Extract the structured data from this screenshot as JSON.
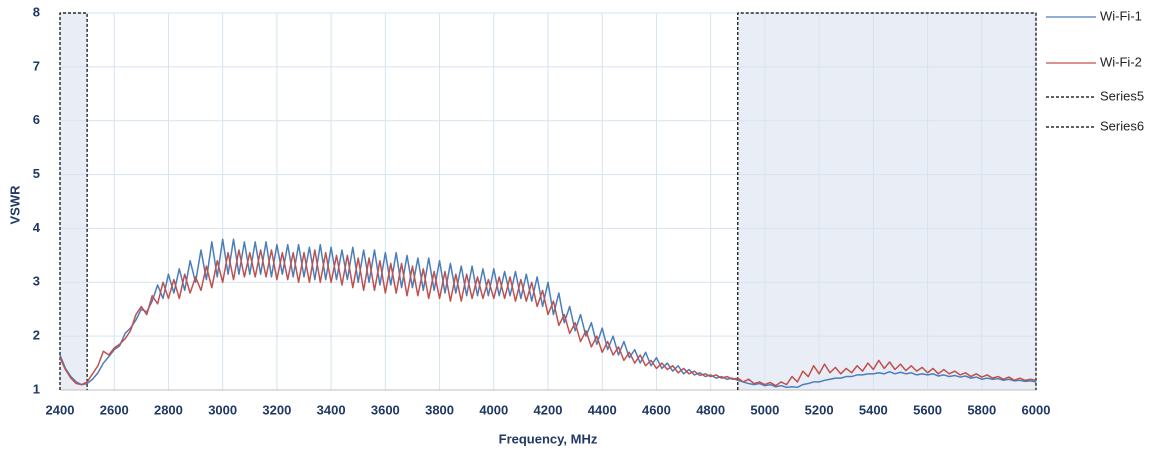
{
  "chart_data": {
    "type": "line",
    "xlabel": "Frequency, MHz",
    "ylabel": "VSWR",
    "xlim": [
      2400,
      6000
    ],
    "xticks": [
      2400,
      2600,
      2800,
      3000,
      3200,
      3400,
      3600,
      3800,
      4000,
      4200,
      4400,
      4600,
      4800,
      5000,
      5200,
      5400,
      5600,
      5800,
      6000
    ],
    "ylim": [
      1,
      8
    ],
    "yticks": [
      1,
      2,
      3,
      4,
      5,
      6,
      7,
      8
    ],
    "grid": true,
    "x": [
      2400,
      2420,
      2440,
      2460,
      2480,
      2500,
      2520,
      2540,
      2560,
      2580,
      2600,
      2620,
      2640,
      2660,
      2680,
      2700,
      2720,
      2740,
      2760,
      2780,
      2800,
      2820,
      2840,
      2860,
      2880,
      2900,
      2920,
      2940,
      2960,
      2980,
      3000,
      3020,
      3040,
      3060,
      3080,
      3100,
      3120,
      3140,
      3160,
      3180,
      3200,
      3220,
      3240,
      3260,
      3280,
      3300,
      3320,
      3340,
      3360,
      3380,
      3400,
      3420,
      3440,
      3460,
      3480,
      3500,
      3520,
      3540,
      3560,
      3580,
      3600,
      3620,
      3640,
      3660,
      3680,
      3700,
      3720,
      3740,
      3760,
      3780,
      3800,
      3820,
      3840,
      3860,
      3880,
      3900,
      3920,
      3940,
      3960,
      3980,
      4000,
      4020,
      4040,
      4060,
      4080,
      4100,
      4120,
      4140,
      4160,
      4180,
      4200,
      4220,
      4240,
      4260,
      4280,
      4300,
      4320,
      4340,
      4360,
      4380,
      4400,
      4420,
      4440,
      4460,
      4480,
      4500,
      4520,
      4540,
      4560,
      4580,
      4600,
      4620,
      4640,
      4660,
      4680,
      4700,
      4720,
      4740,
      4760,
      4780,
      4800,
      4820,
      4840,
      4860,
      4880,
      4900,
      4920,
      4940,
      4960,
      4980,
      5000,
      5020,
      5040,
      5060,
      5080,
      5100,
      5120,
      5140,
      5160,
      5180,
      5200,
      5220,
      5240,
      5260,
      5280,
      5300,
      5320,
      5340,
      5360,
      5380,
      5400,
      5420,
      5440,
      5460,
      5480,
      5500,
      5520,
      5540,
      5560,
      5580,
      5600,
      5620,
      5640,
      5660,
      5680,
      5700,
      5720,
      5740,
      5760,
      5780,
      5800,
      5820,
      5840,
      5860,
      5880,
      5900,
      5920,
      5940,
      5960,
      5980,
      6000
    ],
    "series": [
      {
        "name": "Wi-Fi-1",
        "color": "#4a7ebb",
        "values": [
          1.65,
          1.4,
          1.25,
          1.15,
          1.1,
          1.12,
          1.2,
          1.32,
          1.5,
          1.62,
          1.75,
          1.82,
          2.05,
          2.15,
          2.3,
          2.5,
          2.45,
          2.65,
          2.95,
          2.7,
          3.15,
          2.8,
          3.25,
          2.85,
          3.4,
          3.0,
          3.6,
          3.05,
          3.75,
          3.1,
          3.8,
          3.15,
          3.8,
          3.15,
          3.75,
          3.15,
          3.75,
          3.15,
          3.75,
          3.1,
          3.7,
          3.15,
          3.7,
          3.1,
          3.7,
          3.1,
          3.65,
          3.05,
          3.7,
          3.05,
          3.65,
          3.05,
          3.6,
          3.05,
          3.65,
          3.0,
          3.6,
          3.0,
          3.6,
          2.95,
          3.55,
          2.95,
          3.55,
          2.9,
          3.5,
          2.9,
          3.45,
          2.85,
          3.45,
          2.85,
          3.4,
          2.8,
          3.35,
          2.8,
          3.3,
          2.75,
          3.3,
          2.75,
          3.25,
          2.75,
          3.25,
          2.75,
          3.2,
          2.75,
          3.2,
          2.7,
          3.15,
          2.65,
          3.1,
          2.55,
          3.0,
          2.4,
          2.8,
          2.25,
          2.55,
          2.1,
          2.4,
          2.0,
          2.25,
          1.85,
          2.15,
          1.75,
          2.0,
          1.65,
          1.9,
          1.6,
          1.75,
          1.5,
          1.7,
          1.45,
          1.6,
          1.4,
          1.5,
          1.35,
          1.45,
          1.3,
          1.38,
          1.28,
          1.32,
          1.25,
          1.28,
          1.22,
          1.25,
          1.2,
          1.22,
          1.18,
          1.15,
          1.12,
          1.1,
          1.12,
          1.08,
          1.1,
          1.06,
          1.08,
          1.05,
          1.06,
          1.05,
          1.1,
          1.12,
          1.15,
          1.15,
          1.18,
          1.2,
          1.22,
          1.22,
          1.25,
          1.25,
          1.28,
          1.28,
          1.3,
          1.3,
          1.32,
          1.3,
          1.34,
          1.3,
          1.33,
          1.3,
          1.32,
          1.28,
          1.3,
          1.28,
          1.3,
          1.26,
          1.28,
          1.25,
          1.27,
          1.24,
          1.26,
          1.22,
          1.24,
          1.2,
          1.22,
          1.2,
          1.21,
          1.18,
          1.2,
          1.17,
          1.18,
          1.16,
          1.17,
          1.15
        ]
      },
      {
        "name": "Wi-Fi-2",
        "color": "#c0504d",
        "values": [
          1.6,
          1.38,
          1.22,
          1.12,
          1.1,
          1.15,
          1.3,
          1.45,
          1.72,
          1.65,
          1.78,
          1.85,
          1.95,
          2.1,
          2.4,
          2.55,
          2.4,
          2.75,
          2.6,
          3.0,
          2.7,
          3.05,
          2.7,
          3.15,
          2.8,
          3.1,
          2.85,
          3.3,
          2.9,
          3.4,
          3.0,
          3.55,
          3.05,
          3.6,
          3.1,
          3.55,
          3.1,
          3.6,
          3.1,
          3.6,
          3.05,
          3.55,
          3.05,
          3.55,
          3.0,
          3.55,
          3.0,
          3.6,
          3.0,
          3.55,
          3.0,
          3.5,
          2.95,
          3.5,
          2.9,
          3.45,
          2.85,
          3.45,
          2.85,
          3.4,
          2.8,
          3.35,
          2.8,
          3.35,
          2.75,
          3.3,
          2.75,
          3.25,
          2.7,
          3.2,
          2.7,
          3.2,
          2.65,
          3.15,
          2.65,
          3.15,
          2.7,
          3.1,
          2.7,
          3.05,
          2.7,
          3.1,
          2.7,
          3.1,
          2.65,
          3.05,
          2.65,
          3.0,
          2.55,
          2.85,
          2.4,
          2.65,
          2.2,
          2.4,
          2.05,
          2.25,
          1.9,
          2.1,
          1.8,
          2.0,
          1.7,
          1.9,
          1.65,
          1.8,
          1.55,
          1.7,
          1.5,
          1.65,
          1.45,
          1.55,
          1.4,
          1.5,
          1.38,
          1.45,
          1.32,
          1.4,
          1.3,
          1.35,
          1.27,
          1.3,
          1.25,
          1.28,
          1.22,
          1.25,
          1.2,
          1.22,
          1.15,
          1.2,
          1.12,
          1.15,
          1.1,
          1.14,
          1.08,
          1.15,
          1.1,
          1.25,
          1.15,
          1.35,
          1.25,
          1.45,
          1.3,
          1.48,
          1.32,
          1.42,
          1.3,
          1.4,
          1.32,
          1.45,
          1.35,
          1.5,
          1.38,
          1.55,
          1.4,
          1.52,
          1.38,
          1.48,
          1.36,
          1.45,
          1.35,
          1.42,
          1.32,
          1.4,
          1.3,
          1.38,
          1.3,
          1.35,
          1.28,
          1.32,
          1.25,
          1.3,
          1.24,
          1.28,
          1.22,
          1.25,
          1.2,
          1.24,
          1.18,
          1.22,
          1.18,
          1.2,
          1.18
        ]
      },
      {
        "name": "Series5",
        "color": "#000000",
        "dash": true,
        "shade": "#e9eef6",
        "x": [
          2400,
          2400,
          2500,
          2500
        ],
        "values": [
          1,
          8,
          8,
          1
        ]
      },
      {
        "name": "Series6",
        "color": "#000000",
        "dash": true,
        "shade": "#e9eef6",
        "x": [
          4900,
          4900,
          6000,
          6000
        ],
        "values": [
          1,
          8,
          8,
          1
        ]
      }
    ]
  }
}
